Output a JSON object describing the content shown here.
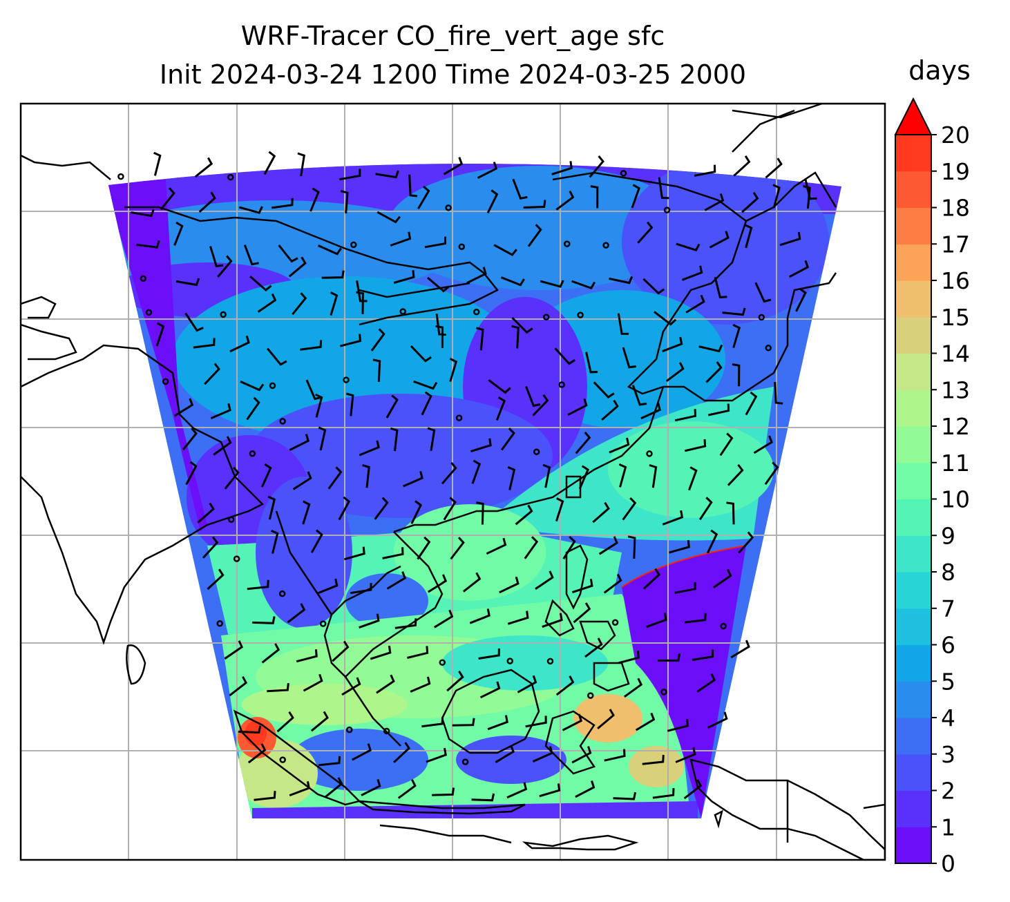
{
  "title": {
    "line1": "WRF-Tracer CO_fire_vert_age sfc",
    "line2": "Init 2024-03-24 1200 Time 2024-03-25 2000"
  },
  "colorbar": {
    "label": "days",
    "ticks": [
      "0",
      "1",
      "2",
      "3",
      "4",
      "5",
      "6",
      "7",
      "8",
      "9",
      "10",
      "11",
      "12",
      "13",
      "14",
      "15",
      "16",
      "17",
      "18",
      "19",
      "20"
    ],
    "extend": "max",
    "colors": [
      "#6b0ff8",
      "#5a31fa",
      "#4a52fa",
      "#3d6ff5",
      "#2a8cec",
      "#12a6e6",
      "#1fbfdf",
      "#28d4d6",
      "#3fe5c8",
      "#56f3b7",
      "#72fba6",
      "#92fb95",
      "#aef68c",
      "#c6e788",
      "#d9d07c",
      "#f0bf6d",
      "#fda358",
      "#fe7d45",
      "#fe5a32",
      "#ff3a1e",
      "#ff1508"
    ],
    "extend_color": "#ff0000"
  },
  "map": {
    "projection": "Lambert conformal",
    "gridlines": true,
    "wind_barbs": true,
    "coastlines": true
  },
  "chart_data": {
    "type": "heatmap",
    "variable": "CO_fire_vert_age sfc",
    "units": "days",
    "range": [
      0,
      20
    ],
    "contour_interval": 1
  }
}
